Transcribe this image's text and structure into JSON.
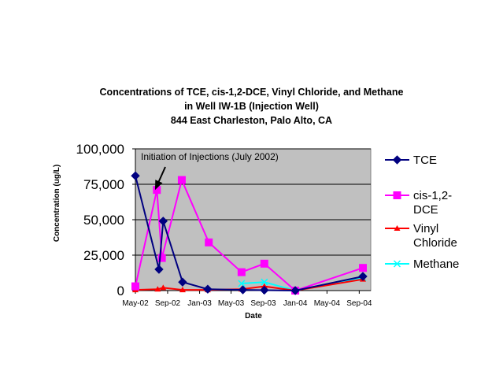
{
  "chart_data": {
    "type": "line",
    "title_lines": [
      "Concentrations of TCE, cis-1,2-DCE, Vinyl Chloride, and Methane",
      "in Well IW-1B (Injection Well)",
      "844 East Charleston, Palo Alto, CA"
    ],
    "xlabel": "Date",
    "ylabel": "Concentration  (ug/L)",
    "xlim": [
      "2002-05-01",
      "2004-10-15"
    ],
    "ylim": [
      0,
      100000
    ],
    "x_ticks": [
      {
        "date": "2002-05-01",
        "label": "May-02"
      },
      {
        "date": "2002-09-01",
        "label": "Sep-02"
      },
      {
        "date": "2003-01-01",
        "label": "Jan-03"
      },
      {
        "date": "2003-05-01",
        "label": "May-03"
      },
      {
        "date": "2003-09-01",
        "label": "Sep-03"
      },
      {
        "date": "2004-01-01",
        "label": "Jan-04"
      },
      {
        "date": "2004-05-01",
        "label": "May-04"
      },
      {
        "date": "2004-09-01",
        "label": "Sep-04"
      }
    ],
    "y_ticks": [
      {
        "value": 0,
        "label": "0"
      },
      {
        "value": 25000,
        "label": "25,000"
      },
      {
        "value": 50000,
        "label": "50,000"
      },
      {
        "value": 75000,
        "label": "75,000"
      },
      {
        "value": 100000,
        "label": "100,000"
      }
    ],
    "grid": "horizontal",
    "legend_position": "right",
    "annotation": {
      "text": "Initiation of Injections (July 2002)",
      "arrow_date": "2002-07-15",
      "arrow_value": 71000
    },
    "series": [
      {
        "name": "TCE",
        "legend_lines": [
          "TCE"
        ],
        "color": "#000080",
        "marker": "diamond",
        "points": [
          {
            "x": "2002-05-01",
            "y": 81000
          },
          {
            "x": "2002-07-30",
            "y": 15000
          },
          {
            "x": "2002-08-15",
            "y": 49000
          },
          {
            "x": "2002-10-28",
            "y": 6000
          },
          {
            "x": "2003-02-01",
            "y": 1000
          },
          {
            "x": "2003-06-15",
            "y": 500
          },
          {
            "x": "2003-09-05",
            "y": 300
          },
          {
            "x": "2004-01-01",
            "y": 0
          },
          {
            "x": "2004-09-15",
            "y": 10000
          }
        ]
      },
      {
        "name": "cis-1,2-DCE",
        "legend_lines": [
          "cis-1,2-",
          "DCE"
        ],
        "color": "#FF00FF",
        "marker": "square",
        "points": [
          {
            "x": "2002-05-01",
            "y": 3000
          },
          {
            "x": "2002-07-22",
            "y": 71000
          },
          {
            "x": "2002-08-10",
            "y": 23000
          },
          {
            "x": "2002-10-25",
            "y": 78000
          },
          {
            "x": "2003-02-05",
            "y": 34000
          },
          {
            "x": "2003-06-10",
            "y": 13000
          },
          {
            "x": "2003-09-05",
            "y": 19000
          },
          {
            "x": "2004-01-01",
            "y": 0
          },
          {
            "x": "2004-09-15",
            "y": 16000
          }
        ]
      },
      {
        "name": "Vinyl Chloride",
        "legend_lines": [
          "Vinyl",
          "Chloride"
        ],
        "color": "#FF0000",
        "marker": "triangle",
        "points": [
          {
            "x": "2002-05-01",
            "y": 500
          },
          {
            "x": "2002-07-25",
            "y": 1000
          },
          {
            "x": "2002-08-15",
            "y": 2000
          },
          {
            "x": "2002-10-28",
            "y": 500
          },
          {
            "x": "2003-02-01",
            "y": 500
          },
          {
            "x": "2003-06-10",
            "y": 1000
          },
          {
            "x": "2003-09-05",
            "y": 3000
          },
          {
            "x": "2004-01-01",
            "y": 0
          },
          {
            "x": "2004-09-15",
            "y": 8000
          }
        ]
      },
      {
        "name": "Methane",
        "legend_lines": [
          "Methane"
        ],
        "color": "#00FFFF",
        "marker": "x",
        "points": [
          {
            "x": "2003-06-10",
            "y": 5000
          },
          {
            "x": "2003-09-05",
            "y": 6000
          },
          {
            "x": "2004-01-01",
            "y": 0
          },
          {
            "x": "2004-09-15",
            "y": 9000
          }
        ]
      }
    ]
  }
}
